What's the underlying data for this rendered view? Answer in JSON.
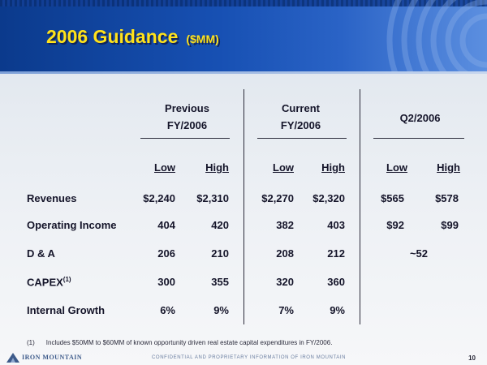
{
  "title": {
    "main": "2006 Guidance",
    "unit": "($MM)"
  },
  "groups": [
    {
      "line1": "Previous",
      "line2": "FY/2006"
    },
    {
      "line1": "Current",
      "line2": "FY/2006"
    },
    {
      "line1": "Q2/2006",
      "line2": ""
    }
  ],
  "columns": [
    "Low",
    "High",
    "Low",
    "High",
    "Low",
    "High"
  ],
  "rows": [
    {
      "label": "Revenues",
      "sup": "",
      "values": [
        "$2,240",
        "$2,310",
        "$2,270",
        "$2,320",
        "$565",
        "$578"
      ]
    },
    {
      "label": "Operating Income",
      "sup": "",
      "values": [
        "404",
        "420",
        "382",
        "403",
        "$92",
        "$99"
      ]
    },
    {
      "label": "D & A",
      "sup": "",
      "values": [
        "206",
        "210",
        "208",
        "212"
      ],
      "q2_span": "~52"
    },
    {
      "label": "CAPEX",
      "sup": "(1)",
      "values": [
        "300",
        "355",
        "320",
        "360"
      ]
    },
    {
      "label": "Internal Growth",
      "sup": "",
      "values": [
        "6%",
        "9%",
        "7%",
        "9%"
      ]
    }
  ],
  "footnote": {
    "marker": "(1)",
    "text": "Includes $50MM to $60MM of known opportunity driven real estate capital expenditures in FY/2006."
  },
  "footer": {
    "logo": "IRON MOUNTAIN",
    "confidential": "CONFIDENTIAL AND PROPRIETARY INFORMATION OF IRON MOUNTAIN",
    "page": "10"
  },
  "colors": {
    "header_blue": "#1750b3",
    "title_yellow": "#ffe21a"
  }
}
